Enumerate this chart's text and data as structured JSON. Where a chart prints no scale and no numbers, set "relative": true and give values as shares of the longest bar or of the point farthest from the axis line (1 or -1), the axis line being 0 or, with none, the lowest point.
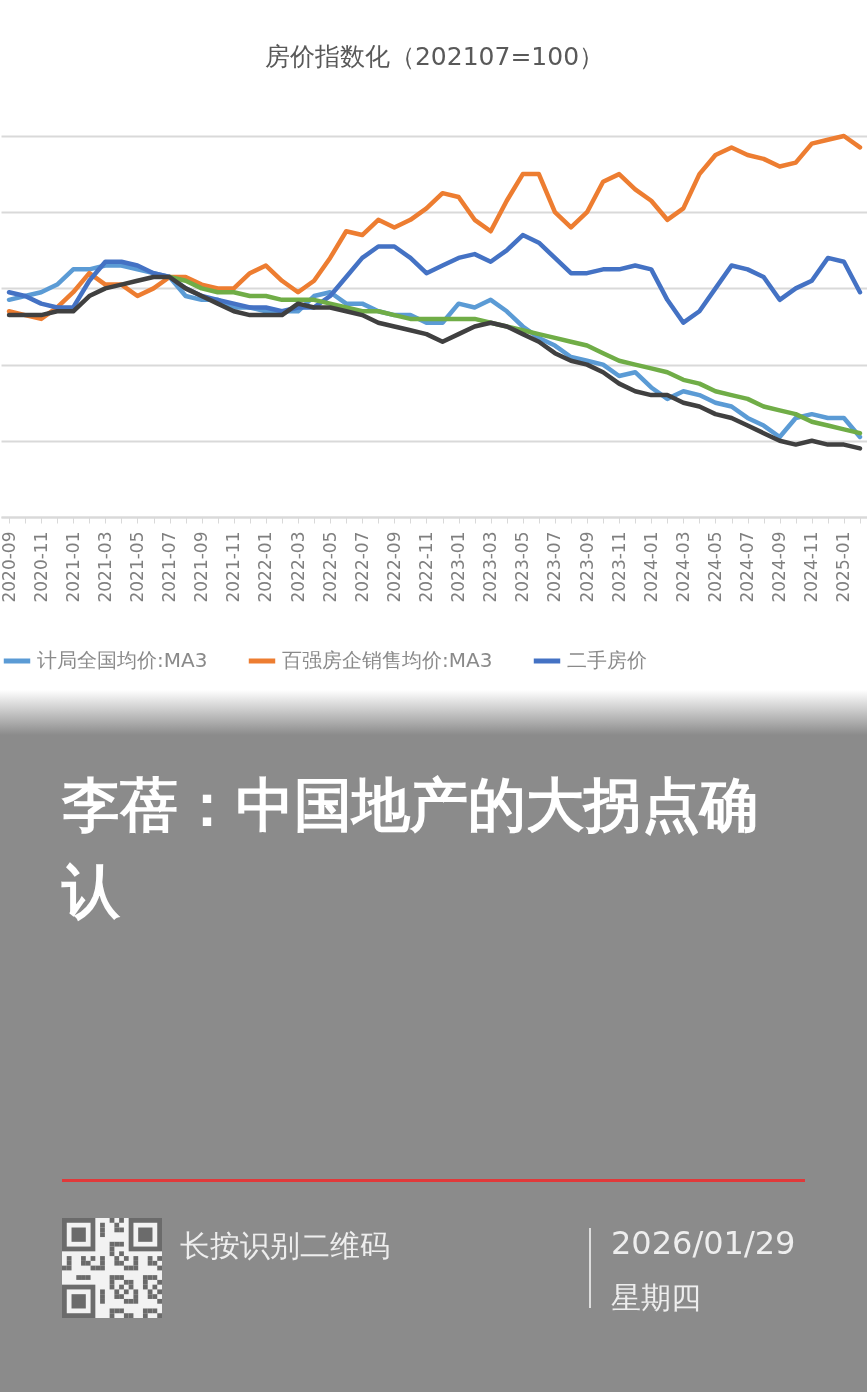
{
  "chart_data": {
    "type": "line",
    "title": "房价指数化（202107=100）",
    "relative": true,
    "grid": "y",
    "legend": "bottom",
    "line_style": "solid",
    "categories": [
      "2020-09",
      null,
      "2020-11",
      null,
      "2021-01",
      null,
      "2021-03",
      null,
      "2021-05",
      null,
      "2021-07",
      null,
      "2021-09",
      null,
      "2021-11",
      null,
      "2022-01",
      null,
      "2022-03",
      null,
      "2022-05",
      null,
      "2022-07",
      null,
      "2022-09",
      null,
      "2022-11",
      null,
      "2023-01",
      null,
      "2023-03",
      null,
      "2023-05",
      null,
      "2023-07",
      null,
      "2023-09",
      null,
      "2023-11",
      null,
      "2024-01",
      null,
      "2024-03",
      null,
      "2024-05",
      null,
      "2024-07",
      null,
      "2024-09",
      null,
      "2024-11",
      null,
      "2025-01",
      null
    ],
    "series": [
      {
        "name": "计局全国均价:MA3",
        "color": "#5b9bd5",
        "values": [
          0.57,
          0.58,
          0.59,
          0.61,
          0.65,
          0.65,
          0.66,
          0.66,
          0.65,
          0.64,
          0.63,
          0.58,
          0.57,
          0.57,
          0.55,
          0.55,
          0.54,
          0.54,
          0.54,
          0.58,
          0.59,
          0.56,
          0.56,
          0.54,
          0.53,
          0.53,
          0.51,
          0.51,
          0.56,
          0.55,
          0.57,
          0.54,
          0.5,
          0.47,
          0.45,
          0.42,
          0.41,
          0.4,
          0.37,
          0.38,
          0.34,
          0.31,
          0.33,
          0.32,
          0.3,
          0.29,
          0.26,
          0.24,
          0.21,
          0.26,
          0.27,
          0.26,
          0.26,
          0.21
        ]
      },
      {
        "name": "百强房企销售均价:MA3",
        "color": "#ed7d31",
        "values": [
          0.54,
          0.53,
          0.52,
          0.55,
          0.59,
          0.64,
          0.61,
          0.61,
          0.58,
          0.6,
          0.63,
          0.63,
          0.61,
          0.6,
          0.6,
          0.64,
          0.66,
          0.62,
          0.59,
          0.62,
          0.68,
          0.75,
          0.74,
          0.78,
          0.76,
          0.78,
          0.81,
          0.85,
          0.84,
          0.78,
          0.75,
          0.83,
          0.9,
          0.9,
          0.8,
          0.76,
          0.8,
          0.88,
          0.9,
          0.86,
          0.83,
          0.78,
          0.81,
          0.9,
          0.95,
          0.97,
          0.95,
          0.94,
          0.92,
          0.93,
          0.98,
          0.99,
          1,
          0.97
        ]
      },
      {
        "name": "二手房价",
        "color": "#4472c4",
        "values": [
          0.59,
          0.58,
          0.56,
          0.55,
          0.55,
          0.62,
          0.67,
          0.67,
          0.66,
          0.64,
          0.63,
          0.6,
          0.58,
          0.57,
          0.56,
          0.55,
          0.55,
          0.54,
          0.55,
          0.55,
          0.58,
          0.63,
          0.68,
          0.71,
          0.71,
          0.68,
          0.64,
          0.66,
          0.68,
          0.69,
          0.67,
          0.7,
          0.74,
          0.72,
          0.68,
          0.64,
          0.64,
          0.65,
          0.65,
          0.66,
          0.65,
          0.57,
          0.51,
          0.54,
          0.6,
          0.66,
          0.65,
          0.63,
          0.57,
          0.6,
          0.62,
          0.68,
          0.67,
          0.59
        ]
      },
      {
        "color": "#70ad47",
        "values": [
          null,
          null,
          null,
          null,
          null,
          null,
          null,
          null,
          null,
          null,
          0.63,
          0.62,
          0.6,
          0.59,
          0.59,
          0.58,
          0.58,
          0.57,
          0.57,
          0.57,
          0.56,
          0.55,
          0.54,
          0.54,
          0.53,
          0.52,
          0.52,
          0.52,
          0.52,
          0.52,
          0.51,
          0.5,
          0.49,
          0.48,
          0.47,
          0.46,
          0.45,
          0.43,
          0.41,
          0.4,
          0.39,
          0.38,
          0.36,
          0.35,
          0.33,
          0.32,
          0.31,
          0.29,
          0.28,
          0.27,
          0.25,
          0.24,
          0.23,
          0.22
        ]
      },
      {
        "color": "#404040",
        "values": [
          0.53,
          0.53,
          0.53,
          0.54,
          0.54,
          0.58,
          0.6,
          0.61,
          0.62,
          0.63,
          0.63,
          0.6,
          0.58,
          0.56,
          0.54,
          0.53,
          0.53,
          0.53,
          0.56,
          0.55,
          0.55,
          0.54,
          0.53,
          0.51,
          0.5,
          0.49,
          0.48,
          0.46,
          0.48,
          0.5,
          0.51,
          0.5,
          0.48,
          0.46,
          0.43,
          0.41,
          0.4,
          0.38,
          0.35,
          0.33,
          0.32,
          0.32,
          0.3,
          0.29,
          0.27,
          0.26,
          0.24,
          0.22,
          0.2,
          0.19,
          0.2,
          0.19,
          0.19,
          0.18
        ]
      }
    ],
    "annotations": [
      "李蓓：中国地产的大拐点确认",
      "长按识别二维码",
      "2026/01/29",
      "星期四"
    ]
  }
}
